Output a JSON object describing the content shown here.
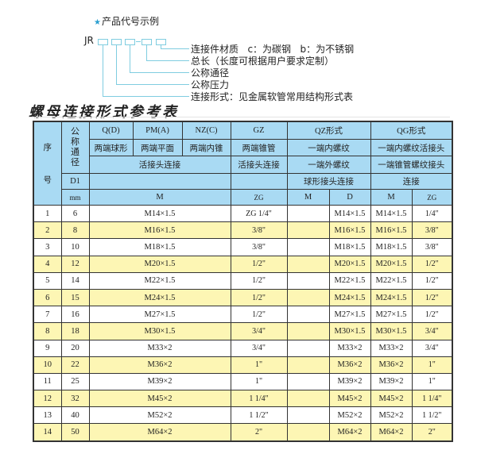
{
  "example": {
    "title": "产品代号示例",
    "code_prefix": "JR",
    "labels": [
      "连接件材质   c：为碳钢   b：为不锈钢",
      "总长（长度可根据用户要求定制）",
      "公称通径",
      "公称压力",
      "连接形式：见金属软管常用结构形式表"
    ],
    "accent_color": "#2a9fd0"
  },
  "table_title": "螺母连接形式参考表",
  "header": {
    "seq": "序",
    "seq2": "号",
    "dn": "公称通径",
    "qd": "Q(D)",
    "pma": "PM(A)",
    "nzc": "NZ(C)",
    "gz": "GZ",
    "qz": "QZ形式",
    "qg": "QG形式",
    "r2": [
      "两端球形",
      "两端平面",
      "两端内锥",
      "两端锥管",
      "一端内螺纹",
      "一端内螺纹活接头"
    ],
    "r3": [
      "活接头连接",
      "活接头连接",
      "一端外螺纹",
      "一端锥管螺纹接头"
    ],
    "d1": "D1",
    "qz_r4": "球形接头连接",
    "qg_r4": "连接",
    "mm": "mm",
    "r5": [
      "M",
      "ZG",
      "M",
      "D",
      "M",
      "ZG"
    ]
  },
  "rows": [
    {
      "no": "1",
      "d1": "6",
      "m": "M14×1.5",
      "gz": "ZG 1/4\"",
      "qz_m": "",
      "qz_d": "M14×1.5",
      "qg_m": "M14×1.5",
      "qg_zg": "1/4\""
    },
    {
      "no": "2",
      "d1": "8",
      "m": "M16×1.5",
      "gz": "3/8\"",
      "qz_m": "",
      "qz_d": "M16×1.5",
      "qg_m": "M16×1.5",
      "qg_zg": "3/8\""
    },
    {
      "no": "3",
      "d1": "10",
      "m": "M18×1.5",
      "gz": "3/8\"",
      "qz_m": "",
      "qz_d": "M18×1.5",
      "qg_m": "M18×1.5",
      "qg_zg": "3/8\""
    },
    {
      "no": "4",
      "d1": "12",
      "m": "M20×1.5",
      "gz": "1/2\"",
      "qz_m": "",
      "qz_d": "M20×1.5",
      "qg_m": "M20×1.5",
      "qg_zg": "1/2\""
    },
    {
      "no": "5",
      "d1": "14",
      "m": "M22×1.5",
      "gz": "1/2\"",
      "qz_m": "",
      "qz_d": "M22×1.5",
      "qg_m": "M22×1.5",
      "qg_zg": "1/2\""
    },
    {
      "no": "6",
      "d1": "15",
      "m": "M24×1.5",
      "gz": "1/2\"",
      "qz_m": "",
      "qz_d": "M24×1.5",
      "qg_m": "M24×1.5",
      "qg_zg": "1/2\""
    },
    {
      "no": "7",
      "d1": "16",
      "m": "M27×1.5",
      "gz": "1/2\"",
      "qz_m": "",
      "qz_d": "M27×1.5",
      "qg_m": "M27×1.5",
      "qg_zg": "1/2\""
    },
    {
      "no": "8",
      "d1": "18",
      "m": "M30×1.5",
      "gz": "3/4\"",
      "qz_m": "",
      "qz_d": "M30×1.5",
      "qg_m": "M30×1.5",
      "qg_zg": "3/4\""
    },
    {
      "no": "9",
      "d1": "20",
      "m": "M33×2",
      "gz": "3/4\"",
      "qz_m": "",
      "qz_d": "M33×2",
      "qg_m": "M33×2",
      "qg_zg": "3/4\""
    },
    {
      "no": "10",
      "d1": "22",
      "m": "M36×2",
      "gz": "1\"",
      "qz_m": "",
      "qz_d": "M36×2",
      "qg_m": "M36×2",
      "qg_zg": "1\""
    },
    {
      "no": "11",
      "d1": "25",
      "m": "M39×2",
      "gz": "1\"",
      "qz_m": "",
      "qz_d": "M39×2",
      "qg_m": "M39×2",
      "qg_zg": "1\""
    },
    {
      "no": "12",
      "d1": "32",
      "m": "M45×2",
      "gz": "1 1/4\"",
      "qz_m": "",
      "qz_d": "M45×2",
      "qg_m": "M45×2",
      "qg_zg": "1 1/4\""
    },
    {
      "no": "13",
      "d1": "40",
      "m": "M52×2",
      "gz": "1 1/2\"",
      "qz_m": "",
      "qz_d": "M52×2",
      "qg_m": "M52×2",
      "qg_zg": "1 1/2\""
    },
    {
      "no": "14",
      "d1": "50",
      "m": "M64×2",
      "gz": "2\"",
      "qz_m": "",
      "qz_d": "M64×2",
      "qg_m": "M64×2",
      "qg_zg": "2\""
    }
  ],
  "colors": {
    "header_bg": "#a9daf3",
    "stripe_bg": "#fdf6b4",
    "line": "#7fcde0"
  }
}
